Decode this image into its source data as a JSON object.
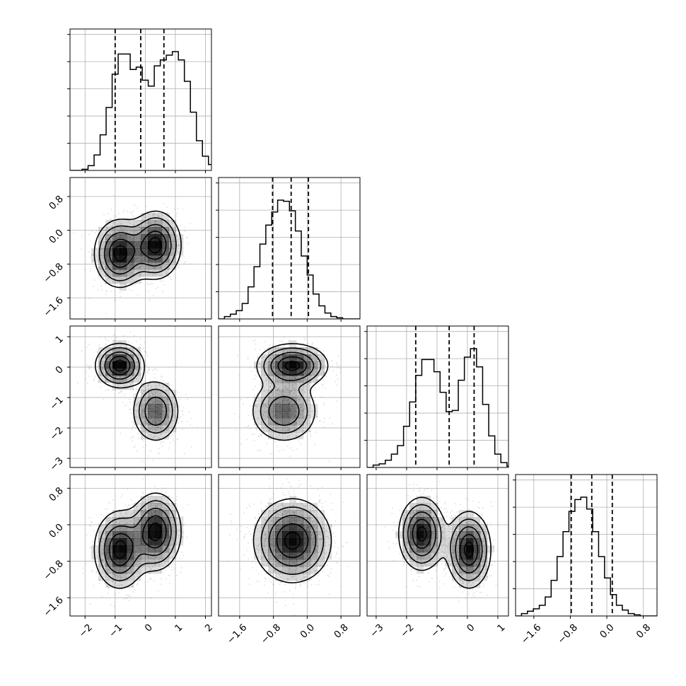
{
  "chart_data": {
    "type": "corner",
    "n_params": 4,
    "grid": true,
    "parameters": [
      {
        "range": [
          -2.5,
          2.2
        ],
        "ticks": [
          -2,
          -1,
          0,
          1,
          2
        ],
        "tick_labels": [
          "−2",
          "−1",
          "0",
          "1",
          "2"
        ],
        "quantiles": [
          -1.0,
          -0.15,
          0.62
        ],
        "hist": {
          "bin_start": -2.5,
          "bin_width": 0.2,
          "counts": [
            0.0,
            0.0,
            0.01,
            0.04,
            0.13,
            0.3,
            0.53,
            0.81,
            0.98,
            0.98,
            0.85,
            0.87,
            0.76,
            0.71,
            0.88,
            0.93,
            0.97,
            1.0,
            0.93,
            0.75,
            0.49,
            0.25,
            0.12,
            0.05,
            0.01
          ]
        }
      },
      {
        "range": [
          -2.1,
          1.25
        ],
        "ticks": [
          -1.6,
          -0.8,
          0.0,
          0.8
        ],
        "tick_labels": [
          "−1.6",
          "−0.8",
          "0.0",
          "0.8"
        ],
        "quantiles": [
          -0.82,
          -0.38,
          0.03
        ],
        "hist": {
          "bin_start": -2.1,
          "bin_width": 0.14,
          "counts": [
            0.0,
            0.02,
            0.04,
            0.07,
            0.13,
            0.27,
            0.44,
            0.63,
            0.79,
            0.9,
            1.0,
            0.99,
            0.91,
            0.74,
            0.53,
            0.37,
            0.21,
            0.11,
            0.05,
            0.02,
            0.01,
            0.0,
            0.0,
            0.0
          ]
        }
      },
      {
        "range": [
          -3.3,
          1.35
        ],
        "ticks": [
          -3,
          -2,
          -1,
          0,
          1
        ],
        "tick_labels": [
          "−3",
          "−2",
          "−1",
          "0",
          "1"
        ],
        "quantiles": [
          -1.7,
          -0.6,
          0.22
        ],
        "hist": {
          "bin_start": -3.3,
          "bin_width": 0.2,
          "counts": [
            0.0,
            0.02,
            0.03,
            0.06,
            0.11,
            0.18,
            0.34,
            0.54,
            0.76,
            0.89,
            0.89,
            0.79,
            0.62,
            0.46,
            0.47,
            0.72,
            0.91,
            0.98,
            0.83,
            0.52,
            0.26,
            0.11,
            0.04,
            0.01
          ]
        }
      },
      {
        "range": [
          -2.0,
          1.1
        ],
        "ticks": [
          -1.6,
          -0.8,
          0.0,
          0.8
        ],
        "tick_labels": [
          "−1.6",
          "−0.8",
          "0.0",
          "0.8"
        ],
        "quantiles": [
          -0.78,
          -0.33,
          0.12
        ],
        "hist": {
          "bin_start": -2.0,
          "bin_width": 0.13,
          "counts": [
            0.0,
            0.02,
            0.04,
            0.06,
            0.09,
            0.16,
            0.3,
            0.5,
            0.71,
            0.88,
            0.98,
            1.0,
            0.9,
            0.71,
            0.5,
            0.32,
            0.18,
            0.09,
            0.05,
            0.02,
            0.01,
            0.0,
            0.0,
            0.0
          ]
        }
      }
    ],
    "pairs": [
      {
        "x": 0,
        "y": 1,
        "components": [
          {
            "mx": -0.85,
            "my": -0.55,
            "sx": 0.42,
            "sy": 0.4,
            "rho": 0.0,
            "w": 0.5
          },
          {
            "mx": 0.35,
            "my": -0.35,
            "sx": 0.42,
            "sy": 0.4,
            "rho": 0.0,
            "w": 0.5
          }
        ]
      },
      {
        "x": 0,
        "y": 2,
        "components": [
          {
            "mx": -0.85,
            "my": 0.05,
            "sx": 0.4,
            "sy": 0.36,
            "rho": 0.0,
            "w": 0.5
          },
          {
            "mx": 0.35,
            "my": -1.45,
            "sx": 0.4,
            "sy": 0.52,
            "rho": 0.0,
            "w": 0.5
          }
        ]
      },
      {
        "x": 1,
        "y": 2,
        "components": [
          {
            "mx": -0.35,
            "my": 0.05,
            "sx": 0.42,
            "sy": 0.36,
            "rho": 0.0,
            "w": 0.5
          },
          {
            "mx": -0.55,
            "my": -1.45,
            "sx": 0.4,
            "sy": 0.52,
            "rho": 0.0,
            "w": 0.5
          }
        ]
      },
      {
        "x": 0,
        "y": 3,
        "components": [
          {
            "mx": -0.85,
            "my": -0.55,
            "sx": 0.42,
            "sy": 0.42,
            "rho": 0.0,
            "w": 0.5
          },
          {
            "mx": 0.35,
            "my": -0.15,
            "sx": 0.42,
            "sy": 0.42,
            "rho": 0.0,
            "w": 0.5
          }
        ]
      },
      {
        "x": 1,
        "y": 3,
        "components": [
          {
            "mx": -0.35,
            "my": -0.35,
            "sx": 0.46,
            "sy": 0.46,
            "rho": 0.0,
            "w": 1.0
          }
        ]
      },
      {
        "x": 2,
        "y": 3,
        "components": [
          {
            "mx": -1.5,
            "my": -0.2,
            "sx": 0.38,
            "sy": 0.4,
            "rho": 0.0,
            "w": 0.5
          },
          {
            "mx": 0.05,
            "my": -0.55,
            "sx": 0.36,
            "sy": 0.42,
            "rho": 0.0,
            "w": 0.5
          }
        ]
      }
    ],
    "contour_levels": [
      0.4,
      0.8,
      1.2,
      1.6,
      2.0
    ],
    "colors": {
      "line": "#000000",
      "grid": "#b0b0b0",
      "density": "#000000",
      "scatter": "#888888"
    }
  }
}
